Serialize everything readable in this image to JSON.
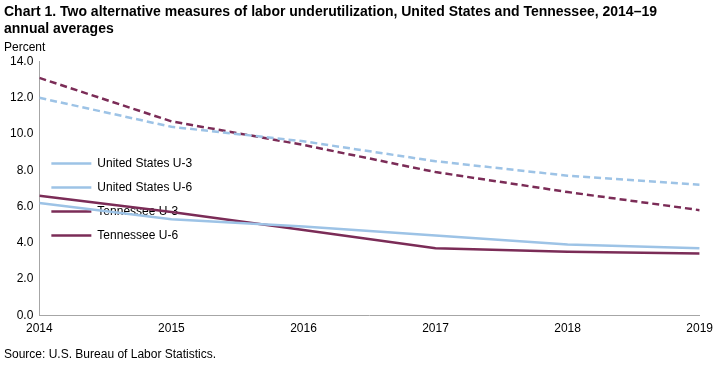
{
  "chart_data": {
    "type": "line",
    "title": "Chart 1. Two alternative measures of labor underutilization, United States and Tennessee, 2014–19 annual averages",
    "y_label": "Percent",
    "source": "Source: U.S. Bureau of Labor Statistics.",
    "x": [
      2014,
      2015,
      2016,
      2017,
      2018,
      2019
    ],
    "series": [
      {
        "name": "United States U-3",
        "color": "#9dc3e6",
        "line_style": "solid",
        "values": [
          6.2,
          5.3,
          4.9,
          4.4,
          3.9,
          3.7
        ]
      },
      {
        "name": "United States U-6",
        "color": "#9dc3e6",
        "line_style": "dashed",
        "values": [
          12.0,
          10.4,
          9.6,
          8.5,
          7.7,
          7.2
        ]
      },
      {
        "name": "Tennessee U-3",
        "color": "#7b2c57",
        "line_style": "solid",
        "values": [
          6.6,
          5.7,
          4.7,
          3.7,
          3.5,
          3.4
        ]
      },
      {
        "name": "Tennessee U-6",
        "color": "#7b2c57",
        "line_style": "dashed",
        "values": [
          13.1,
          10.7,
          9.4,
          7.9,
          6.8,
          5.8
        ]
      }
    ],
    "xlim": [
      2014,
      2019
    ],
    "xticks": [
      2014,
      2015,
      2016,
      2017,
      2018,
      2019
    ],
    "ylim": [
      0,
      14
    ],
    "yticks": [
      {
        "value": 0,
        "label": "0.0"
      },
      {
        "value": 2,
        "label": "2.0"
      },
      {
        "value": 4,
        "label": "4.0"
      },
      {
        "value": 6,
        "label": "6.0"
      },
      {
        "value": 8,
        "label": "8.0"
      },
      {
        "value": 10,
        "label": "10.0"
      },
      {
        "value": 12,
        "label": "12.0"
      },
      {
        "value": 14,
        "label": "14.0"
      }
    ],
    "grid": false,
    "legend": "top-right"
  }
}
